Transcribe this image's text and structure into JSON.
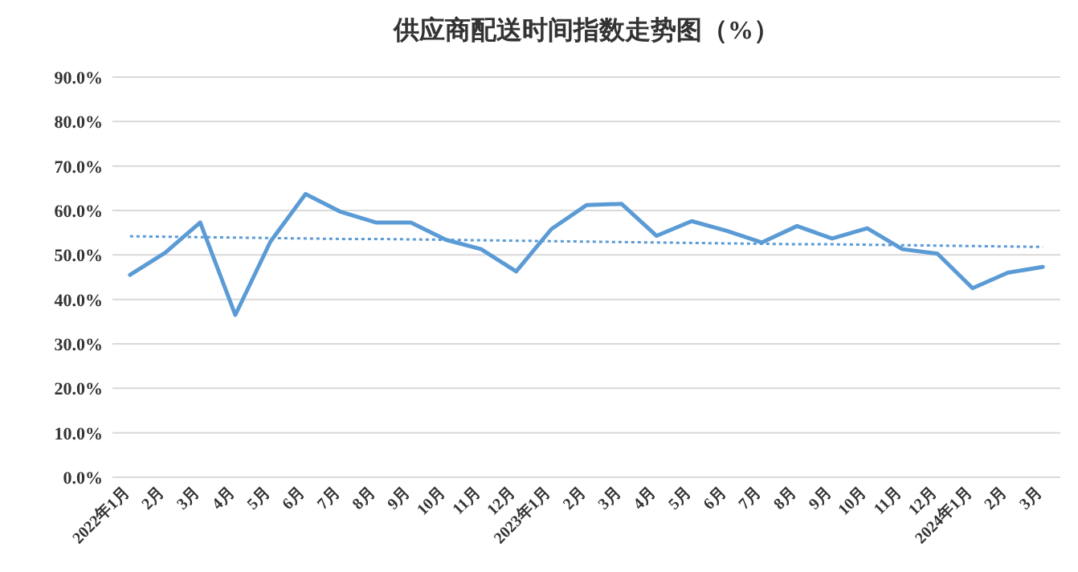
{
  "chart_data": {
    "type": "line",
    "title": "供应商配送时间指数走势图（%）",
    "categories": [
      "2022年1月",
      "2月",
      "3月",
      "4月",
      "5月",
      "6月",
      "7月",
      "8月",
      "9月",
      "10月",
      "11月",
      "12月",
      "2023年1月",
      "2月",
      "3月",
      "4月",
      "5月",
      "6月",
      "7月",
      "8月",
      "9月",
      "10月",
      "11月",
      "12月",
      "2024年1月",
      "2月",
      "3月"
    ],
    "series": [
      {
        "color": "#5b9bd5",
        "line_style": "solid",
        "values": [
          45.5,
          50.5,
          57.3,
          36.5,
          53.0,
          63.7,
          59.7,
          57.3,
          57.3,
          53.4,
          51.3,
          46.3,
          55.8,
          61.2,
          61.5,
          54.3,
          57.6,
          55.4,
          52.8,
          56.5,
          53.7,
          56.0,
          51.3,
          50.3,
          42.5,
          46.0,
          47.3
        ]
      },
      {
        "color": "#5b9bd5",
        "line_style": "dotted",
        "values": [
          54.2,
          54.1,
          54.0,
          53.9,
          53.8,
          53.7,
          53.6,
          53.6,
          53.5,
          53.4,
          53.3,
          53.2,
          53.1,
          53.0,
          52.9,
          52.8,
          52.7,
          52.6,
          52.5,
          52.4,
          52.4,
          52.3,
          52.2,
          52.1,
          52.0,
          51.9,
          51.8
        ]
      }
    ],
    "ylim": [
      0,
      90
    ],
    "yticks": [
      {
        "value": 0,
        "label": "0.0%"
      },
      {
        "value": 10,
        "label": "10.0%"
      },
      {
        "value": 20,
        "label": "20.0%"
      },
      {
        "value": 30,
        "label": "30.0%"
      },
      {
        "value": 40,
        "label": "40.0%"
      },
      {
        "value": 50,
        "label": "50.0%"
      },
      {
        "value": 60,
        "label": "60.0%"
      },
      {
        "value": 70,
        "label": "70.0%"
      },
      {
        "value": 80,
        "label": "80.0%"
      },
      {
        "value": 90,
        "label": "90.0%"
      }
    ],
    "grid": "y"
  }
}
